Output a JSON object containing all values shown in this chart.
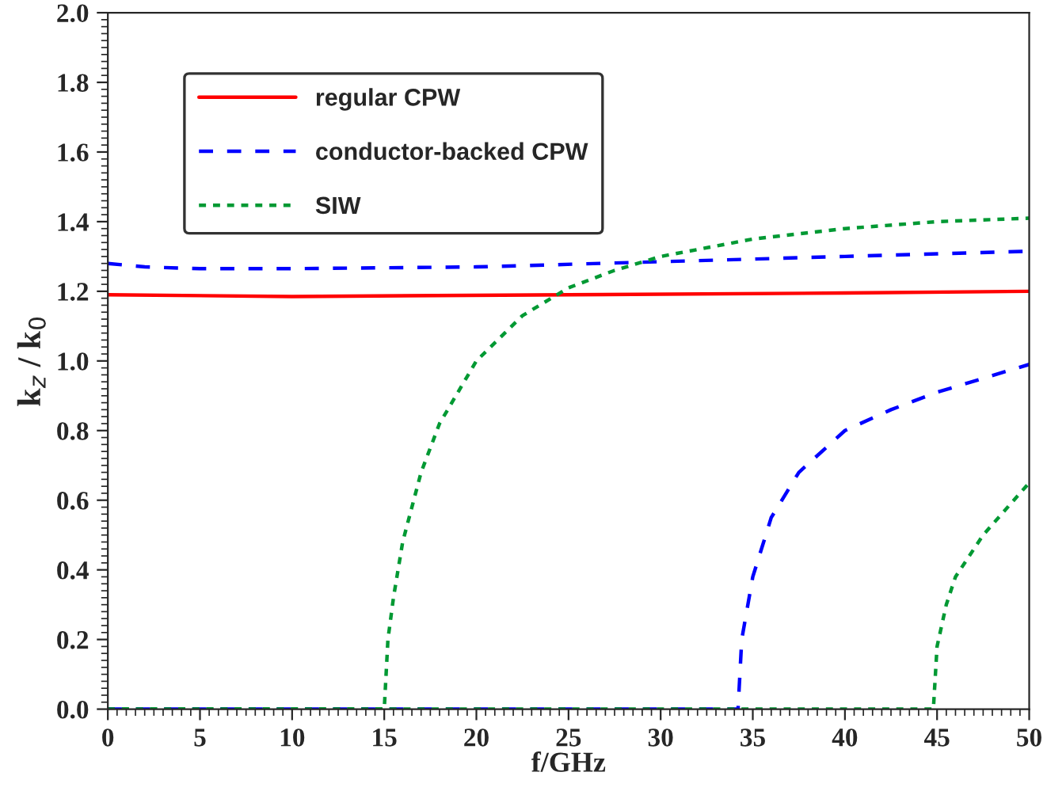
{
  "chart_data": {
    "type": "line",
    "xlabel": "f/GHz",
    "ylabel": "k$_{z}$ / k$_{0}$",
    "xlim": [
      0,
      50
    ],
    "ylim": [
      0,
      2.0
    ],
    "xticks": [
      0,
      5,
      10,
      15,
      20,
      25,
      30,
      35,
      40,
      45,
      50
    ],
    "yticks": [
      {
        "value": 0,
        "label": "0.0"
      },
      0.2,
      0.4,
      0.6,
      0.8,
      {
        "value": 1,
        "label": "1.0"
      },
      1.2,
      1.4,
      1.6,
      1.8,
      {
        "value": 2,
        "label": "2.0"
      }
    ],
    "grid": false,
    "legend": "top left",
    "marker": "none",
    "series": [
      {
        "name": "regular CPW",
        "color": "#ff0000",
        "line_style": "solid",
        "x": [
          0,
          10,
          25,
          40,
          50
        ],
        "values": [
          1.19,
          1.185,
          1.19,
          1.195,
          1.2
        ]
      },
      {
        "name": "conductor-backed CPW",
        "color": "#0000ff",
        "line_style": "dashed",
        "x": [
          0,
          2,
          5,
          10,
          20,
          30,
          40,
          50
        ],
        "values": [
          1.28,
          1.27,
          1.265,
          1.265,
          1.27,
          1.285,
          1.3,
          1.315
        ]
      },
      {
        "name": "SIW",
        "color": "#009933",
        "line_style": "dotted",
        "x": [
          0,
          15,
          15.2,
          15.5,
          16,
          17,
          18,
          20,
          22.5,
          25,
          27.5,
          30,
          35,
          40,
          45,
          50
        ],
        "values": [
          0,
          0,
          0.2,
          0.32,
          0.48,
          0.68,
          0.82,
          1.0,
          1.13,
          1.21,
          1.26,
          1.3,
          1.35,
          1.38,
          1.4,
          1.41
        ]
      },
      {
        "color": "#0000ff",
        "line_style": "dashed",
        "x": [
          0,
          34.2,
          34.4,
          35,
          36,
          37.5,
          40,
          42.5,
          45,
          47.5,
          50
        ],
        "values": [
          0,
          0,
          0.2,
          0.38,
          0.55,
          0.68,
          0.8,
          0.86,
          0.91,
          0.95,
          0.99
        ]
      },
      {
        "color": "#009933",
        "line_style": "dotted",
        "x": [
          0,
          44.8,
          45,
          45.5,
          46,
          47.5,
          50
        ],
        "values": [
          0,
          0,
          0.18,
          0.3,
          0.38,
          0.5,
          0.65
        ]
      }
    ]
  }
}
